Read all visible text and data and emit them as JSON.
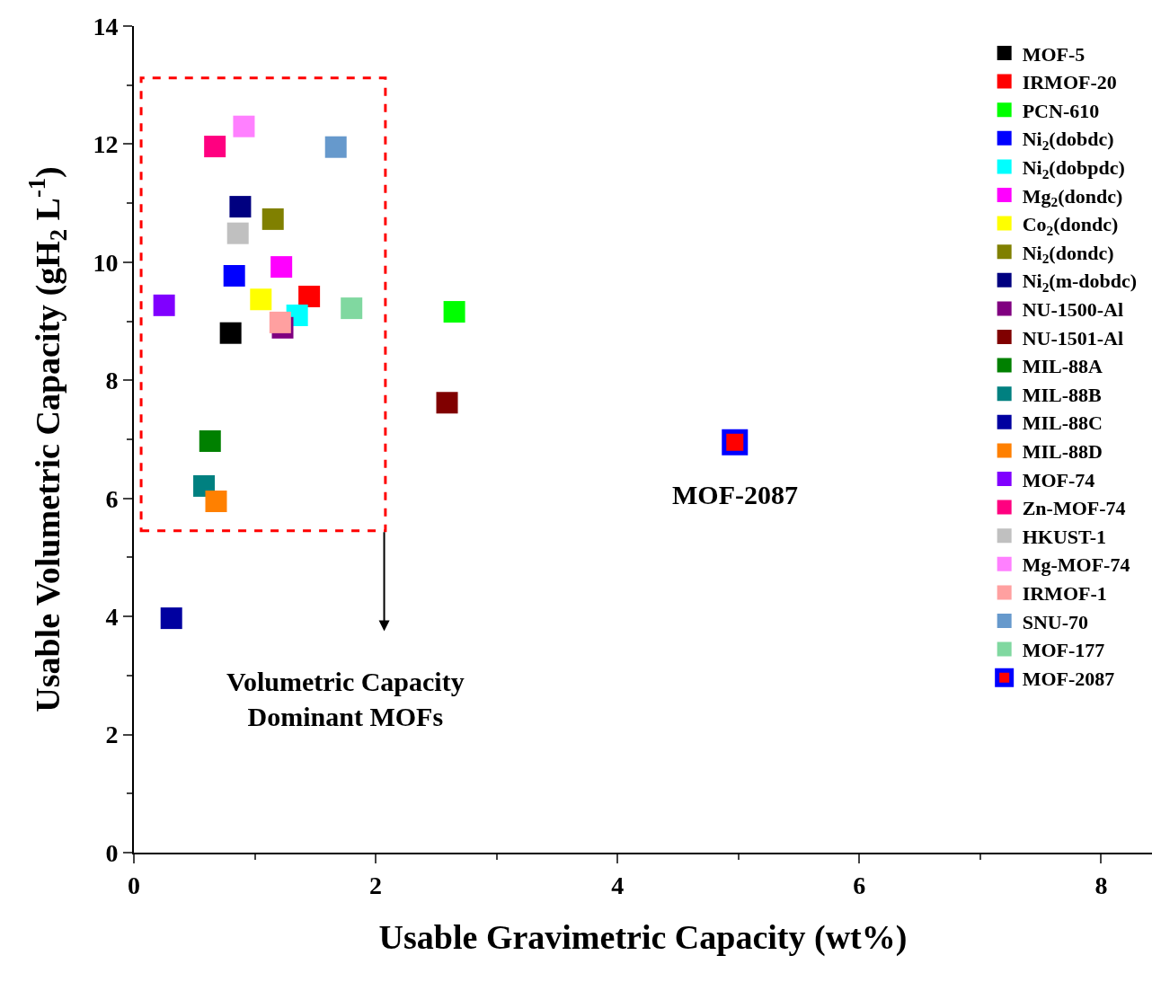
{
  "chart_data": {
    "type": "scatter",
    "xlabel": "Usable Gravimetric Capacity (wt%)",
    "ylabel": "Usable Volumetric Capacity (gH$_{2}$ L$^{-1}$)",
    "xlim": [
      0,
      8.42
    ],
    "xticks": [
      0,
      2,
      4,
      6,
      8
    ],
    "ylim": [
      0,
      14
    ],
    "yticks": [
      0,
      2,
      4,
      6,
      8,
      10,
      12,
      14
    ],
    "grid": false,
    "legend": "top right",
    "marker": "square",
    "series": [
      {
        "name": "MOF-5",
        "color": "#000000",
        "x": [
          0.8
        ],
        "values": [
          8.8
        ]
      },
      {
        "name": "IRMOF-20",
        "color": "#ff0000",
        "x": [
          1.45
        ],
        "values": [
          9.42
        ]
      },
      {
        "name": "PCN-610",
        "color": "#00ff00",
        "x": [
          2.65
        ],
        "values": [
          9.16
        ]
      },
      {
        "name": "Ni$_{2}$(dobdc)",
        "color": "#0000ff",
        "x": [
          0.83
        ],
        "values": [
          9.77
        ]
      },
      {
        "name": "Ni$_{2}$(dobpdc)",
        "color": "#00ffff",
        "x": [
          1.35
        ],
        "values": [
          9.1
        ]
      },
      {
        "name": "Mg$_{2}$(dondc)",
        "color": "#ff00ff",
        "x": [
          1.22
        ],
        "values": [
          9.92
        ]
      },
      {
        "name": "Co$_{2}$(dondc)",
        "color": "#ffff00",
        "x": [
          1.05
        ],
        "values": [
          9.37
        ]
      },
      {
        "name": "Ni$_{2}$(dondc)",
        "color": "#808000",
        "x": [
          1.15
        ],
        "values": [
          10.73
        ]
      },
      {
        "name": "Ni$_{2}$(m-dobdc)",
        "color": "#000080",
        "x": [
          0.88
        ],
        "values": [
          10.94
        ]
      },
      {
        "name": "NU-1500-Al",
        "color": "#800080",
        "x": [
          1.23
        ],
        "values": [
          8.89
        ]
      },
      {
        "name": "NU-1501-Al",
        "color": "#800000",
        "x": [
          2.59
        ],
        "values": [
          7.62
        ]
      },
      {
        "name": "MIL-88A",
        "color": "#008000",
        "x": [
          0.63
        ],
        "values": [
          6.97
        ]
      },
      {
        "name": "MIL-88B",
        "color": "#008080",
        "x": [
          0.58
        ],
        "values": [
          6.21
        ]
      },
      {
        "name": "MIL-88C",
        "color": "#0000a0",
        "x": [
          0.31
        ],
        "values": [
          3.97
        ]
      },
      {
        "name": "MIL-88D",
        "color": "#ff8000",
        "x": [
          0.68
        ],
        "values": [
          5.95
        ]
      },
      {
        "name": "MOF-74",
        "color": "#8000ff",
        "x": [
          0.25
        ],
        "values": [
          9.27
        ]
      },
      {
        "name": "Zn-MOF-74",
        "color": "#ff0080",
        "x": [
          0.67
        ],
        "values": [
          11.96
        ]
      },
      {
        "name": "HKUST-1",
        "color": "#c0c0c0",
        "x": [
          0.86
        ],
        "values": [
          10.49
        ]
      },
      {
        "name": "Mg-MOF-74",
        "color": "#ff80ff",
        "x": [
          0.91
        ],
        "values": [
          12.3
        ]
      },
      {
        "name": "IRMOF-1",
        "color": "#ffa0a0",
        "x": [
          1.21
        ],
        "values": [
          8.98
        ]
      },
      {
        "name": "SNU-70",
        "color": "#6699cc",
        "x": [
          1.67
        ],
        "values": [
          11.95
        ]
      },
      {
        "name": "MOF-177",
        "color": "#80d8a0",
        "x": [
          1.8
        ],
        "values": [
          9.22
        ]
      },
      {
        "name": "MOF-2087",
        "color": "#0000ff",
        "colors": [
          "#ff0000"
        ],
        "x": [
          4.97
        ],
        "values": [
          6.95
        ]
      }
    ],
    "annotations": [
      {
        "text": "MOF-2087",
        "x": 4.97,
        "y": 6.95
      },
      "Volumetric Capacity\nDominant MOFs"
    ]
  }
}
